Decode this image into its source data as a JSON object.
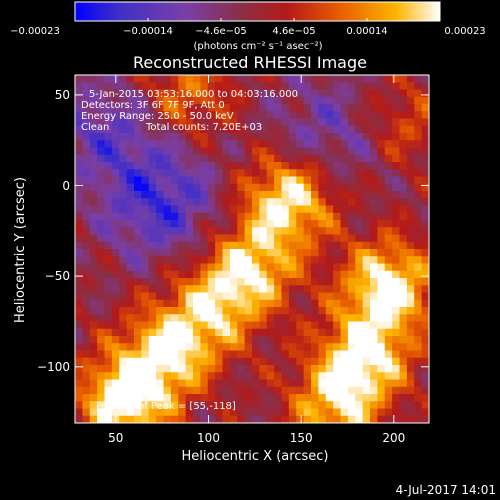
{
  "chart_data": {
    "type": "heatmap",
    "title": "Reconstructed RHESSI Image",
    "xlabel": "Heliocentric X (arcsec)",
    "ylabel": "Heliocentric Y (arcsec)",
    "xlim": [
      28,
      219
    ],
    "ylim": [
      -131,
      61
    ],
    "x_ticks": [
      50,
      100,
      150,
      200
    ],
    "x_tick_labels": [
      "50",
      "100",
      "150",
      "200"
    ],
    "y_ticks": [
      50,
      0,
      -50,
      -100
    ],
    "y_tick_labels": [
      "50",
      "0",
      "−50",
      "−100"
    ],
    "colorbar": {
      "range": [
        -0.00023,
        0.00023
      ],
      "ticks": [
        -0.00023,
        -0.00014,
        -4.6e-05,
        4.6e-05,
        0.00014,
        0.00023
      ],
      "tick_labels": [
        "−0.00023",
        "−0.00014",
        "−4.6e−05",
        "4.6e−05",
        "0.00014",
        "0.00023"
      ],
      "unit_label": "(photons cm⁻² s⁻¹ asec⁻²)",
      "colors": [
        "#0000ff",
        "#3f2fc8",
        "#7a3fa8",
        "#8a2f4a",
        "#b31a1a",
        "#e65a00",
        "#ffb400",
        "#ffffff"
      ]
    },
    "annotations": {
      "time_range": "5-Jan-2015 03:53:16.000 to 04:03:16.000",
      "detectors": "Detectors: 3F 6F 7F 9F, Att 0",
      "energy_range": "Energy Range: 25.0 - 50.0 keV",
      "method": "Clean",
      "total_counts": "Total counts: 7.20E+03",
      "peak_position": "Position of Peak = [55,-118]"
    },
    "peak": {
      "x": 55,
      "y": -118
    },
    "image_features": [
      {
        "x": 143,
        "y": -8,
        "intensity": 0.92
      },
      {
        "x": 123,
        "y": -45,
        "intensity": 0.78
      },
      {
        "x": 102,
        "y": -68,
        "intensity": 0.66
      },
      {
        "x": 78,
        "y": -92,
        "intensity": 0.82
      },
      {
        "x": 55,
        "y": -118,
        "intensity": 1.0
      },
      {
        "x": 197,
        "y": -55,
        "intensity": 0.95
      },
      {
        "x": 185,
        "y": -93,
        "intensity": 0.86
      },
      {
        "x": 169,
        "y": -121,
        "intensity": 0.76
      },
      {
        "x": 88,
        "y": 50,
        "intensity": 0.48
      },
      {
        "x": 205,
        "y": 35,
        "intensity": 0.35
      },
      {
        "x": 75,
        "y": -10,
        "intensity": -0.58
      },
      {
        "x": 45,
        "y": 30,
        "intensity": -0.42
      },
      {
        "x": 165,
        "y": 30,
        "intensity": -0.36
      }
    ]
  },
  "footer": {
    "date": "4-Jul-2017 14:01"
  }
}
